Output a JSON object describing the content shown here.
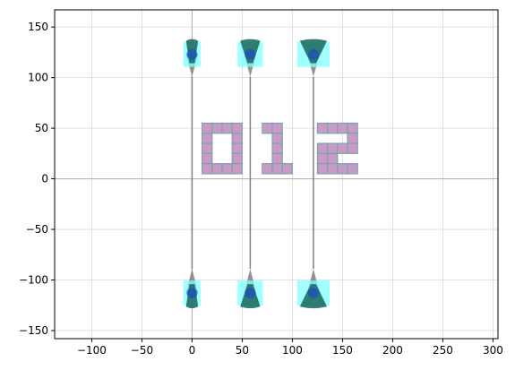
{
  "chart_data": {
    "type": "scatter",
    "title": "",
    "xlabel": "",
    "ylabel": "",
    "xlim": [
      -137,
      305
    ],
    "ylim": [
      -158,
      167
    ],
    "xticks": [
      -100,
      -50,
      0,
      50,
      100,
      150,
      200,
      250,
      300
    ],
    "xtick_labels": [
      "−100",
      "−50",
      "0",
      "50",
      "100",
      "150",
      "200",
      "250",
      "300"
    ],
    "yticks": [
      -150,
      -100,
      -50,
      0,
      50,
      100,
      150
    ],
    "ytick_labels": [
      "−150",
      "−100",
      "−50",
      "0",
      "50",
      "100",
      "150"
    ],
    "grid": true,
    "reference_lines": {
      "x": 0,
      "y": 0,
      "color": "#b0b0b0"
    },
    "probes": [
      {
        "x": 0,
        "top_y": 123,
        "bottom_y": -113,
        "top_wedge_width": 12,
        "bottom_wedge_width": 12
      },
      {
        "x": 58,
        "top_y": 123,
        "bottom_y": -113,
        "top_wedge_width": 20,
        "bottom_wedge_width": 20
      },
      {
        "x": 121,
        "top_y": 123,
        "bottom_y": -113,
        "top_wedge_width": 27,
        "bottom_wedge_width": 27
      }
    ],
    "probe_taper": {
      "top_tip_y": 101,
      "bottom_tip_y": -89,
      "tip_half_width": 7
    },
    "digits": {
      "text": "012",
      "cell_size": 10,
      "cells": [
        [
          15,
          50
        ],
        [
          25,
          50
        ],
        [
          35,
          50
        ],
        [
          45,
          50
        ],
        [
          15,
          40
        ],
        [
          45,
          40
        ],
        [
          15,
          30
        ],
        [
          45,
          30
        ],
        [
          15,
          20
        ],
        [
          45,
          20
        ],
        [
          15,
          10
        ],
        [
          25,
          10
        ],
        [
          35,
          10
        ],
        [
          45,
          10
        ],
        [
          75,
          50
        ],
        [
          85,
          50
        ],
        [
          85,
          40
        ],
        [
          85,
          30
        ],
        [
          85,
          20
        ],
        [
          75,
          10
        ],
        [
          85,
          10
        ],
        [
          95,
          10
        ],
        [
          130,
          50
        ],
        [
          140,
          50
        ],
        [
          150,
          50
        ],
        [
          160,
          50
        ],
        [
          160,
          40
        ],
        [
          130,
          30
        ],
        [
          140,
          30
        ],
        [
          150,
          30
        ],
        [
          160,
          30
        ],
        [
          130,
          20
        ],
        [
          140,
          20
        ],
        [
          130,
          10
        ],
        [
          140,
          10
        ],
        [
          150,
          10
        ],
        [
          160,
          10
        ]
      ]
    },
    "colors": {
      "wire": "#808080",
      "wedge": "#1f6e63",
      "pad_highlight": "#80ffff",
      "marker": "#1f4fbf",
      "digit_fill": "#c79bc3",
      "digit_edge": "#7fa0b4"
    }
  }
}
